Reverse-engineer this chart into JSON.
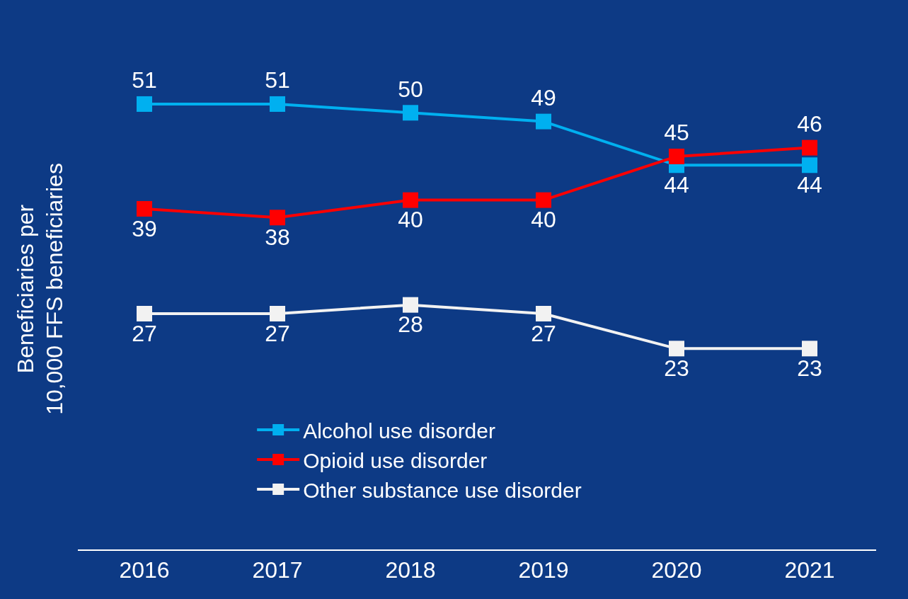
{
  "chart_data": {
    "type": "line",
    "ylabel": "Beneficiaries per 10,000 FFS beneficiaries",
    "categories": [
      "2016",
      "2017",
      "2018",
      "2019",
      "2020",
      "2021"
    ],
    "series": [
      {
        "name": "Alcohol use disorder",
        "color": "#00b0f0",
        "values": [
          51,
          51,
          50,
          49,
          44,
          44
        ]
      },
      {
        "name": "Opioid use disorder",
        "color": "#ff0000",
        "values": [
          39,
          38,
          40,
          40,
          45,
          46
        ]
      },
      {
        "name": "Other substance use disorder",
        "color": "#f2f2f2",
        "values": [
          27,
          27,
          28,
          27,
          23,
          23
        ]
      }
    ],
    "data_labels": true,
    "marker": "square",
    "line_style": "solid",
    "legend": "bottom",
    "grid": false
  }
}
